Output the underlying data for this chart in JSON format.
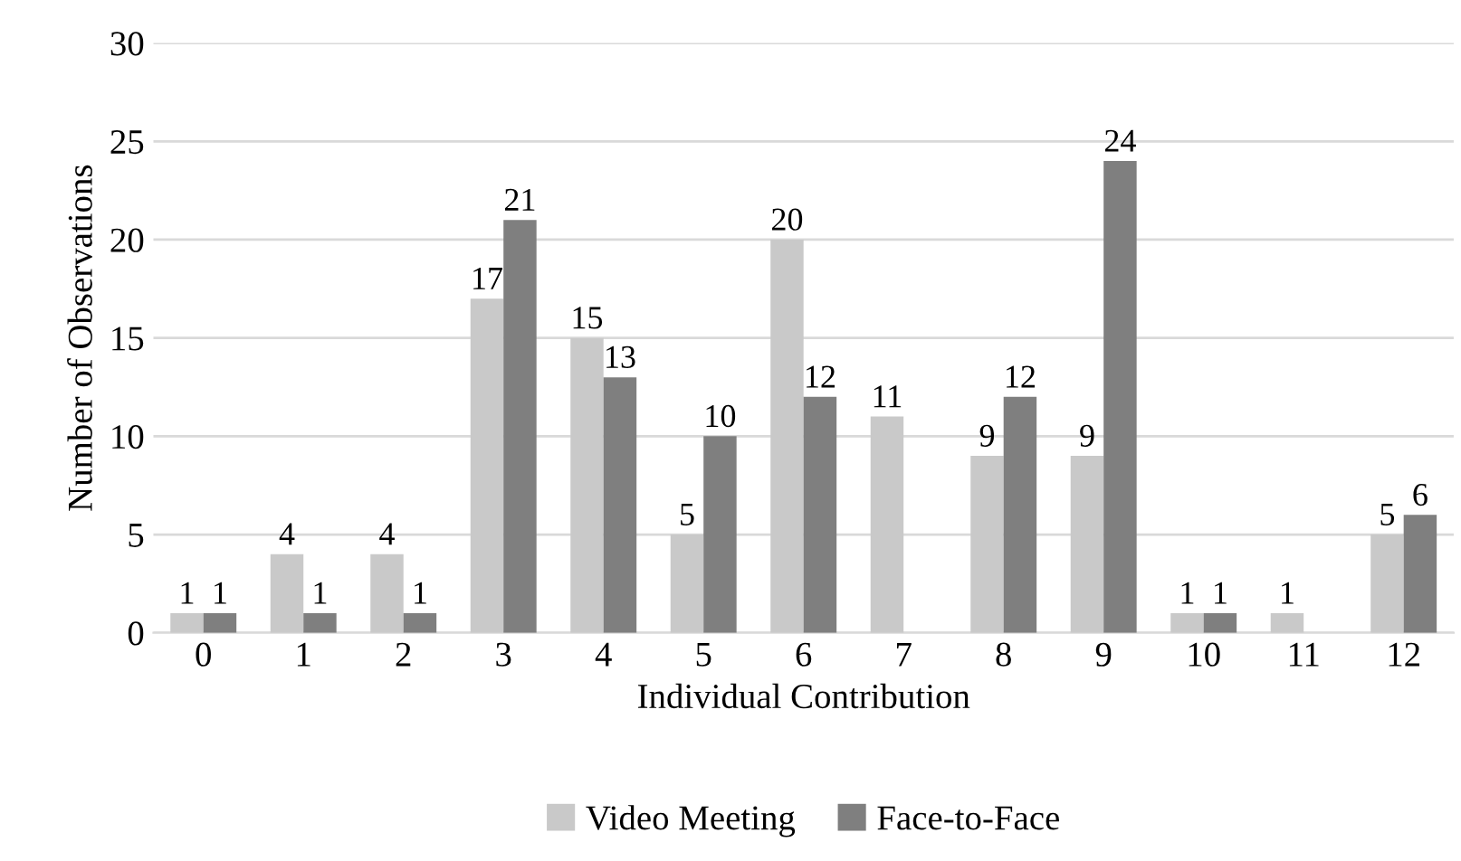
{
  "chart_data": {
    "type": "bar",
    "xlabel": "Individual Contribution",
    "ylabel": "Number of Observations",
    "categories": [
      "0",
      "1",
      "2",
      "3",
      "4",
      "5",
      "6",
      "7",
      "8",
      "9",
      "10",
      "11",
      "12"
    ],
    "series": [
      {
        "name": "Video Meeting",
        "color": "#c9c9c9",
        "values": [
          1,
          4,
          4,
          17,
          15,
          5,
          20,
          11,
          9,
          9,
          1,
          1,
          5
        ]
      },
      {
        "name": "Face-to-Face",
        "color": "#7f7f7f",
        "values": [
          1,
          1,
          1,
          21,
          13,
          10,
          12,
          null,
          12,
          24,
          1,
          null,
          6
        ]
      }
    ],
    "ylim": [
      0,
      30
    ],
    "yticks": [
      0,
      5,
      10,
      15,
      20,
      25,
      30
    ],
    "grid": "y",
    "legend": "bottom",
    "data_labels": true
  }
}
